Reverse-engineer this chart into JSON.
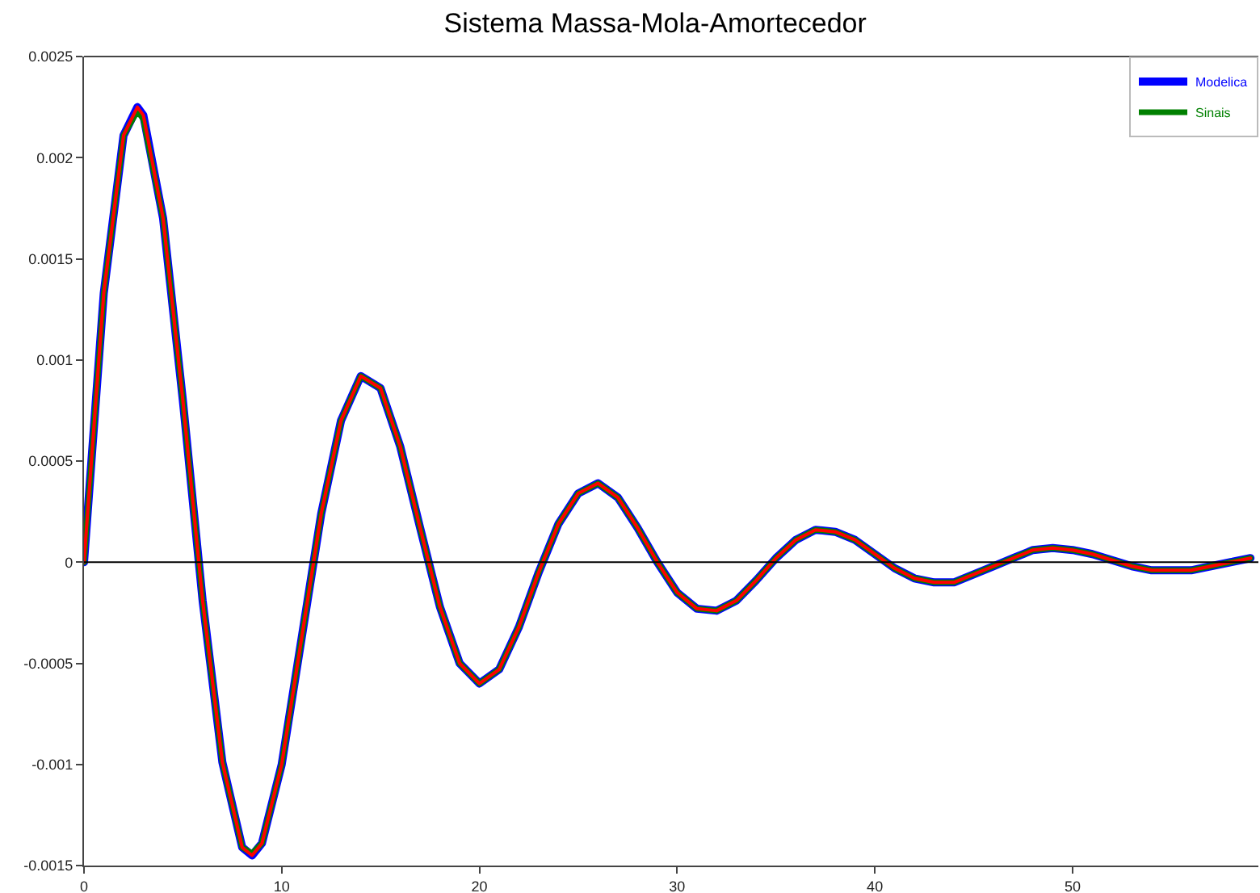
{
  "chart_data": {
    "type": "line",
    "title": "Sistema Massa-Mola-Amortecedor",
    "x": [
      0,
      1,
      2,
      2.7,
      3,
      4,
      5,
      6,
      7,
      8,
      8.5,
      9,
      10,
      11,
      12,
      13,
      14,
      15,
      16,
      17,
      18,
      19,
      20,
      21,
      22,
      23,
      24,
      25,
      26,
      27,
      28,
      29,
      30,
      31,
      32,
      33,
      34,
      35,
      36,
      37,
      38,
      39,
      40,
      41,
      42,
      43,
      44,
      45,
      46,
      47,
      48,
      49,
      50,
      51,
      52,
      53,
      54,
      55,
      56,
      57,
      58,
      59
    ],
    "series": [
      {
        "name": "Modelica",
        "color": "#0000ff",
        "values": [
          0,
          0.00133,
          0.00211,
          0.00225,
          0.00221,
          0.0017,
          0.0008,
          -0.00019,
          -0.00099,
          -0.00141,
          -0.00145,
          -0.00139,
          -0.001,
          -0.00038,
          0.00024,
          0.0007,
          0.00092,
          0.00086,
          0.00057,
          0.00017,
          -0.00022,
          -0.0005,
          -0.0006,
          -0.00053,
          -0.00032,
          -5e-05,
          0.00019,
          0.00034,
          0.00039,
          0.00032,
          0.00017,
          0,
          -0.00015,
          -0.00023,
          -0.00024,
          -0.00019,
          -9e-05,
          2e-05,
          0.00011,
          0.00016,
          0.00015,
          0.00011,
          4e-05,
          -3e-05,
          -8e-05,
          -0.0001,
          -0.0001,
          -6e-05,
          -2e-05,
          2e-05,
          6e-05,
          7e-05,
          6e-05,
          4e-05,
          1e-05,
          -2e-05,
          -4e-05,
          -4e-05,
          -4e-05,
          -2e-05,
          0,
          2e-05
        ]
      },
      {
        "name": "Sinais",
        "color": "#008000",
        "values": [
          0,
          0.00133,
          0.00211,
          0.00223,
          0.00219,
          0.0017,
          0.0008,
          -0.00019,
          -0.00099,
          -0.00141,
          -0.00144,
          -0.00139,
          -0.001,
          -0.00038,
          0.00024,
          0.0007,
          0.00092,
          0.00086,
          0.00057,
          0.00017,
          -0.00022,
          -0.0005,
          -0.0006,
          -0.00053,
          -0.00032,
          -5e-05,
          0.00019,
          0.00034,
          0.00039,
          0.00032,
          0.00017,
          0,
          -0.00015,
          -0.00023,
          -0.00024,
          -0.00019,
          -9e-05,
          2e-05,
          0.00011,
          0.00016,
          0.00015,
          0.00011,
          4e-05,
          -3e-05,
          -8e-05,
          -0.0001,
          -0.0001,
          -6e-05,
          -2e-05,
          2e-05,
          6e-05,
          7e-05,
          6e-05,
          4e-05,
          1e-05,
          -2e-05,
          -4e-05,
          -4e-05,
          -4e-05,
          -2e-05,
          0,
          2e-05
        ]
      },
      {
        "color": "#ff0000",
        "values": [
          0,
          0.00133,
          0.00211,
          0.00225,
          0.00221,
          0.0017,
          0.0008,
          -0.00019,
          -0.00099,
          -0.00141,
          -0.00145,
          -0.00139,
          -0.001,
          -0.00038,
          0.00024,
          0.0007,
          0.00092,
          0.00086,
          0.00057,
          0.00017,
          -0.00022,
          -0.0005,
          -0.0006,
          -0.00053,
          -0.00032,
          -5e-05,
          0.00019,
          0.00034,
          0.00039,
          0.00032,
          0.00017,
          0,
          -0.00015,
          -0.00023,
          -0.00024,
          -0.00019,
          -9e-05,
          2e-05,
          0.00011,
          0.00016,
          0.00015,
          0.00011,
          4e-05,
          -3e-05,
          -8e-05,
          -0.0001,
          -0.0001,
          -6e-05,
          -2e-05,
          2e-05,
          6e-05,
          7e-05,
          6e-05,
          4e-05,
          1e-05,
          -2e-05,
          -4e-05,
          -4e-05,
          -4e-05,
          -2e-05,
          0,
          2e-05
        ]
      }
    ],
    "xlim": [
      0,
      59.4
    ],
    "xticks": [
      0,
      10,
      20,
      30,
      40,
      50
    ],
    "ylim": [
      -0.0015,
      0.0025
    ],
    "yticks": [
      -0.0015,
      -0.001,
      -0.0005,
      0,
      0.0005,
      0.001,
      0.0015,
      0.002,
      0.0025
    ],
    "ref_lines": [
      {
        "axis": "y",
        "value": 0,
        "color": "#000000"
      }
    ],
    "grid": false,
    "legend": "top right",
    "line_style": "solid",
    "marker": "none"
  }
}
